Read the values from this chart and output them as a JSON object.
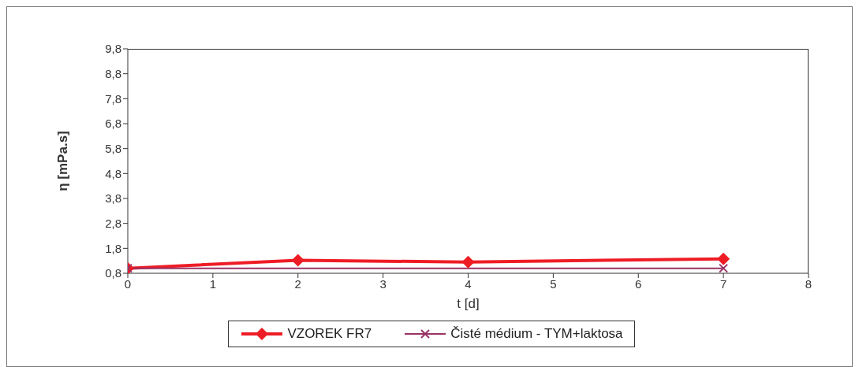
{
  "chart_data": {
    "type": "line",
    "xlabel": "t [d]",
    "ylabel": "η [mPa.s]",
    "xlim": [
      0,
      8
    ],
    "xticks": [
      0,
      1,
      2,
      3,
      4,
      5,
      6,
      7,
      8
    ],
    "ylim": [
      0.8,
      9.8
    ],
    "yticks": [
      {
        "value": 0.8,
        "label": "0,8"
      },
      {
        "value": 1.8,
        "label": "1,8"
      },
      {
        "value": 2.8,
        "label": "2,8"
      },
      {
        "value": 3.8,
        "label": "3,8"
      },
      {
        "value": 4.8,
        "label": "4,8"
      },
      {
        "value": 5.8,
        "label": "5,8"
      },
      {
        "value": 6.8,
        "label": "6,8"
      },
      {
        "value": 7.8,
        "label": "7,8"
      },
      {
        "value": 8.8,
        "label": "8,8"
      },
      {
        "value": 9.8,
        "label": "9,8"
      }
    ],
    "legend": "bottom",
    "line_style": "solid",
    "series": [
      {
        "name": "VZOREK FR7",
        "color": "#ee1c25",
        "marker": "diamond",
        "x": [
          0,
          2,
          4,
          7
        ],
        "values": [
          1.0,
          1.32,
          1.25,
          1.38
        ]
      },
      {
        "name": "Čisté médium - TYM+laktosa",
        "color": "#993366",
        "marker": "cross",
        "x": [
          0,
          7
        ],
        "values": [
          1.0,
          1.0
        ]
      }
    ]
  }
}
